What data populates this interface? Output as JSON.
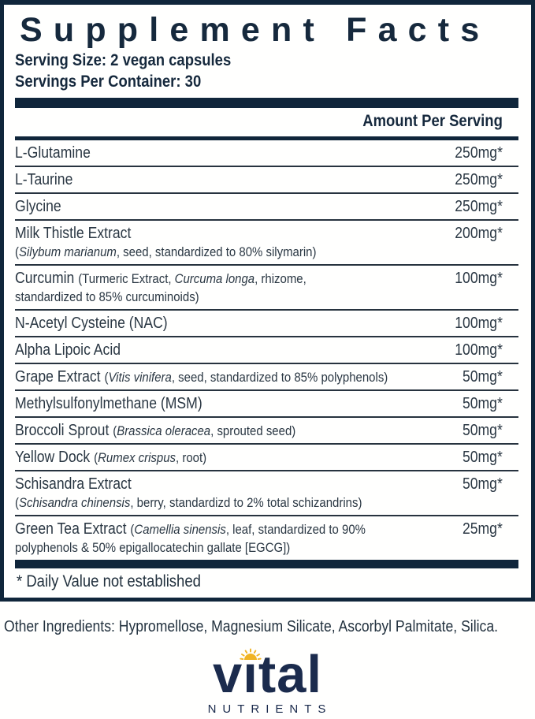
{
  "colors": {
    "navy": "#10263B",
    "ink": "#16293D",
    "row_text": "#2A3743",
    "brand_navy": "#1B2B4D",
    "sun_gold": "#F0B323"
  },
  "label": {
    "title": "Supplement Facts",
    "serving_size": "Serving Size: 2 vegan capsules",
    "servings_per_container": "Servings Per Container: 30",
    "column_header": "Amount Per Serving",
    "rows": [
      {
        "amount": "250mg*",
        "lines": [
          [
            {
              "t": "L-Glutamine"
            }
          ]
        ]
      },
      {
        "amount": "250mg*",
        "lines": [
          [
            {
              "t": "L-Taurine"
            }
          ]
        ]
      },
      {
        "amount": "250mg*",
        "lines": [
          [
            {
              "t": "Glycine"
            }
          ]
        ]
      },
      {
        "amount": "200mg*",
        "lines": [
          [
            {
              "t": "Milk Thistle Extract"
            }
          ],
          [
            {
              "t": "(",
              "sm": true
            },
            {
              "t": "Silybum marianum",
              "sm": true,
              "i": true
            },
            {
              "t": ", seed, standardized to 80% silymarin)",
              "sm": true
            }
          ]
        ]
      },
      {
        "amount": "100mg*",
        "lines": [
          [
            {
              "t": "Curcumin "
            },
            {
              "t": "(Turmeric Extract, ",
              "sm": true
            },
            {
              "t": "Curcuma longa",
              "sm": true,
              "i": true
            },
            {
              "t": ", rhizome,",
              "sm": true
            }
          ],
          [
            {
              "t": "standardized to 85% curcuminoids)",
              "sm": true
            }
          ]
        ]
      },
      {
        "amount": "100mg*",
        "lines": [
          [
            {
              "t": "N-Acetyl Cysteine (NAC)"
            }
          ]
        ]
      },
      {
        "amount": "100mg*",
        "lines": [
          [
            {
              "t": "Alpha Lipoic Acid"
            }
          ]
        ]
      },
      {
        "amount": "50mg*",
        "lines": [
          [
            {
              "t": "Grape Extract "
            },
            {
              "t": "(",
              "sm": true
            },
            {
              "t": "Vitis vinifera",
              "sm": true,
              "i": true
            },
            {
              "t": ", seed, standardized to 85% polyphenols)",
              "sm": true
            }
          ]
        ]
      },
      {
        "amount": "50mg*",
        "lines": [
          [
            {
              "t": "Methylsulfonylmethane (MSM)"
            }
          ]
        ]
      },
      {
        "amount": "50mg*",
        "lines": [
          [
            {
              "t": "Broccoli Sprout "
            },
            {
              "t": "(",
              "sm": true
            },
            {
              "t": "Brassica oleracea",
              "sm": true,
              "i": true
            },
            {
              "t": ", sprouted seed)",
              "sm": true
            }
          ]
        ]
      },
      {
        "amount": "50mg*",
        "lines": [
          [
            {
              "t": "Yellow Dock "
            },
            {
              "t": "(",
              "sm": true
            },
            {
              "t": "Rumex crispus",
              "sm": true,
              "i": true
            },
            {
              "t": ", root)",
              "sm": true
            }
          ]
        ]
      },
      {
        "amount": "50mg*",
        "lines": [
          [
            {
              "t": "Schisandra Extract"
            }
          ],
          [
            {
              "t": "(",
              "sm": true
            },
            {
              "t": "Schisandra chinensis",
              "sm": true,
              "i": true
            },
            {
              "t": ", berry, standardizd to 2% total schizandrins)",
              "sm": true
            }
          ]
        ]
      },
      {
        "amount": "25mg*",
        "lines": [
          [
            {
              "t": "Green Tea Extract "
            },
            {
              "t": "(",
              "sm": true
            },
            {
              "t": "Camellia sinensis",
              "sm": true,
              "i": true
            },
            {
              "t": ", leaf, standardized to 90%",
              "sm": true
            }
          ],
          [
            {
              "t": "polyphenols & 50% epigallocatechin gallate [EGCG])",
              "sm": true
            }
          ]
        ]
      }
    ],
    "footnote": "* Daily Value not established"
  },
  "other_ingredients": "Other Ingredients: Hypromellose, Magnesium Silicate, Ascorbyl Palmitate, Silica.",
  "brand": {
    "name_pre": "v",
    "name_i": "ı",
    "name_post": "tal",
    "subtext": "NUTRIENTS"
  }
}
